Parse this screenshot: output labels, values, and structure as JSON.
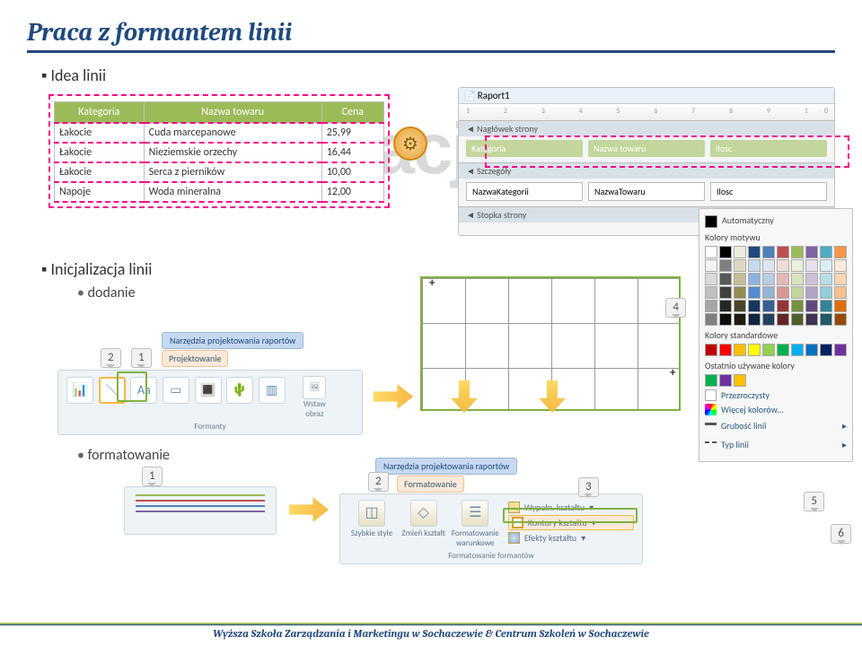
{
  "title": "Praca z formantem linii",
  "sections": {
    "idea": "Idea linii",
    "init": "Inicjalizacja linii",
    "add": "dodanie",
    "format": "formatowanie"
  },
  "watermark": "Demonstracja",
  "table": {
    "columns": [
      "Kategoria",
      "Nazwa towaru",
      "Cena"
    ],
    "rows": [
      [
        "Łakocie",
        "Cuda marcepanowe",
        "25,99"
      ],
      [
        "Łakocie",
        "Nieziemskie orzechy",
        "16,44"
      ],
      [
        "Łakocie",
        "Serca z pierników",
        "10,00"
      ],
      [
        "Napoje",
        "Woda mineralna",
        "12,00"
      ]
    ],
    "header_bg": "#9bbb59",
    "border_color": "#bfbfbf",
    "dash_color": "#ff0088"
  },
  "report": {
    "title": "Raport1",
    "ruler": "1 2 3 4 5 6 7 8 9 10",
    "bands": {
      "header": "Nagłówek strony",
      "detail": "Szczegóły",
      "footer": "Stopka strony"
    },
    "header_cells": [
      "Kategoria",
      "Nazwa towaru",
      "Ilosc"
    ],
    "detail_cells": [
      "NazwaKategorii",
      "NazwaTowaru",
      "Ilosc"
    ]
  },
  "callouts": {
    "c1": "1",
    "c2": "2",
    "c3": "3",
    "c4": "4",
    "c5": "5",
    "c6": "6"
  },
  "ribbon_top": {
    "group_title": "Narzędzia projektowania raportów",
    "tab": "Projektowanie",
    "panel_label": "Formanty",
    "insert_image": "Wstaw obraz"
  },
  "ribbon_bottom": {
    "group_title": "Narzędzia projektowania raportów",
    "tab": "Formatowanie",
    "items": [
      "Szybkie style",
      "Zmień kształt",
      "Formatowanie warunkowe"
    ],
    "panel_label": "Formatowanie formantów",
    "menu": {
      "fill": "Wypełn. kształtu",
      "outline": "Kontury kształtu",
      "effects": "Efekty kształtu"
    }
  },
  "color_panel": {
    "auto": "Automatyczny",
    "theme": "Kolory motywu",
    "standard": "Kolory standardowe",
    "recent": "Ostatnio używane kolory",
    "transparent": "Przezroczysty",
    "more": "Więcej kolorów...",
    "weight": "Grubość linii",
    "type": "Typ linii",
    "theme_rows": [
      [
        "#ffffff",
        "#000000",
        "#eeece1",
        "#1f497d",
        "#4f81bd",
        "#c0504d",
        "#9bbb59",
        "#8064a2",
        "#4bacc6",
        "#f79646"
      ],
      [
        "#f2f2f2",
        "#7f7f7f",
        "#ddd9c4",
        "#c6d9f1",
        "#dce6f1",
        "#f2dcdb",
        "#ebf1dd",
        "#e5e0ec",
        "#dbeef3",
        "#fdeada"
      ],
      [
        "#d9d9d9",
        "#595959",
        "#c4bd97",
        "#8db3e2",
        "#b8cce4",
        "#e5b9b7",
        "#d8e4bc",
        "#ccc1d9",
        "#b7dde8",
        "#fbd5b5"
      ],
      [
        "#bfbfbf",
        "#404040",
        "#948a54",
        "#548dd4",
        "#95b3d7",
        "#d99694",
        "#c3d69b",
        "#b2a2c7",
        "#92cddc",
        "#fac08f"
      ],
      [
        "#a6a6a6",
        "#262626",
        "#494529",
        "#17365d",
        "#366092",
        "#953734",
        "#76923c",
        "#5f497a",
        "#31859b",
        "#e36c09"
      ],
      [
        "#808080",
        "#0d0d0d",
        "#1d1b10",
        "#0f243e",
        "#244061",
        "#632423",
        "#4f6128",
        "#3f3151",
        "#205867",
        "#974806"
      ]
    ],
    "standard_row": [
      "#c00000",
      "#ff0000",
      "#ffc000",
      "#ffff00",
      "#92d050",
      "#00b050",
      "#00b0f0",
      "#0070c0",
      "#002060",
      "#7030a0"
    ],
    "recent_row": [
      "#00b050",
      "#7030a0",
      "#ffc000"
    ]
  },
  "footer": "Wyższa Szkoła Zarządzania i Marketingu w Sochaczewie & Centrum Szkoleń w Sochaczewie"
}
